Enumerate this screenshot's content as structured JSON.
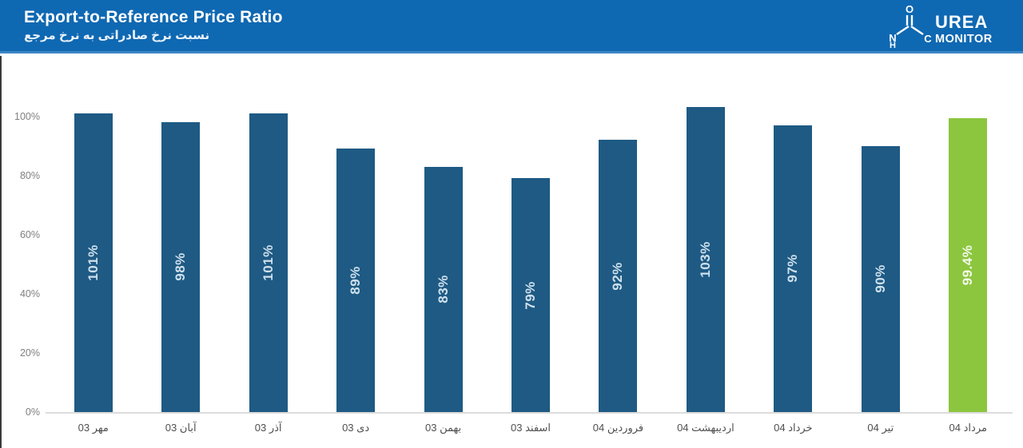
{
  "header": {
    "title": "Export-to-Reference Price Ratio",
    "subtitle_fa": "نسبت نرخ صادراتی به نرخ مرجع",
    "logo": {
      "brand_top": "UREA",
      "brand_bottom": "MONITOR",
      "atom_o": "O",
      "atom_n": "N",
      "atom_h": "H",
      "atom_c": "C"
    }
  },
  "colors": {
    "header_bg": "#0f68b2",
    "bar_blue": "#1e5a84",
    "bar_green": "#8cc63f",
    "value_label_on_blue": "#cfe0ec",
    "value_label_on_green": "#f4f9ec",
    "axis_line": "#dcdcdc",
    "ytick_text": "#7f7f7f",
    "xlabel_text": "#4f4f4f"
  },
  "chart_data": {
    "type": "bar",
    "title": "Export-to-Reference Price Ratio",
    "title_fa": "نسبت نرخ صادراتی به نرخ مرجع",
    "categories": [
      "مهر 03",
      "آبان 03",
      "آذر 03",
      "دی 03",
      "بهمن 03",
      "اسفند 03",
      "فروردین 04",
      "اردیبهشت 04",
      "خرداد 04",
      "تیر 04",
      "مرداد 04"
    ],
    "values": [
      101,
      98,
      101,
      89,
      83,
      79,
      92,
      103,
      97,
      90,
      99.4
    ],
    "value_labels": [
      "101%",
      "98%",
      "101%",
      "89%",
      "83%",
      "79%",
      "92%",
      "103%",
      "97%",
      "90%",
      "99.4%"
    ],
    "highlight_index": 10,
    "xlabel": "",
    "ylabel": "",
    "ylim": [
      0,
      105
    ],
    "yticks": [
      0,
      20,
      40,
      60,
      80,
      100
    ],
    "ytick_labels": [
      "0%",
      "20%",
      "40%",
      "60%",
      "80%",
      "100%"
    ],
    "grid": false,
    "legend": false
  }
}
